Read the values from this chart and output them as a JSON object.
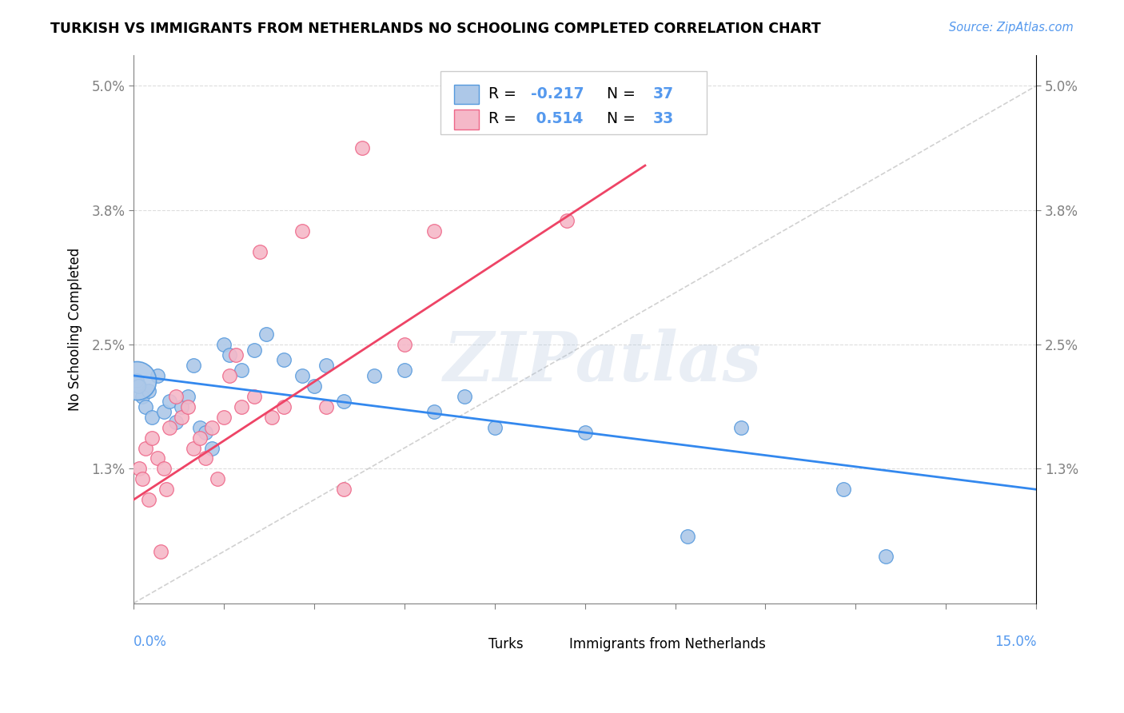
{
  "title": "TURKISH VS IMMIGRANTS FROM NETHERLANDS NO SCHOOLING COMPLETED CORRELATION CHART",
  "source": "Source: ZipAtlas.com",
  "ylabel": "No Schooling Completed",
  "blue_color": "#adc8e8",
  "pink_color": "#f5b8c8",
  "blue_edge": "#5599dd",
  "pink_edge": "#ee6688",
  "blue_line_color": "#3388ee",
  "pink_line_color": "#ee4466",
  "diag_color": "#cccccc",
  "grid_color": "#dddddd",
  "r_blue": "-0.217",
  "n_blue": "37",
  "r_pink": "0.514",
  "n_pink": "33",
  "xmin": 0.0,
  "xmax": 15.0,
  "ymin": 0.0,
  "ymax": 5.3,
  "ytick_vals": [
    1.3,
    2.5,
    3.8,
    5.0
  ],
  "xtick_vals": [
    0.0,
    1.5,
    3.0,
    4.5,
    6.0,
    7.5,
    9.0,
    10.5,
    12.0,
    13.5,
    15.0
  ],
  "watermark": "ZIPatlas",
  "axis_label_color": "#5599ee",
  "title_size": 12.5,
  "axis_tick_size": 12,
  "turks_x": [
    0.05,
    0.1,
    0.15,
    0.2,
    0.25,
    0.3,
    0.4,
    0.5,
    0.6,
    0.7,
    0.8,
    0.9,
    1.0,
    1.1,
    1.2,
    1.3,
    1.5,
    1.6,
    1.8,
    2.0,
    2.2,
    2.5,
    2.8,
    3.0,
    3.2,
    3.5,
    4.0,
    4.5,
    5.0,
    5.5,
    6.0,
    7.5,
    9.2,
    10.1,
    11.8,
    12.5,
    0.08
  ],
  "turks_y": [
    2.15,
    2.1,
    2.0,
    1.9,
    2.05,
    1.8,
    2.2,
    1.85,
    1.95,
    1.75,
    1.9,
    2.0,
    2.3,
    1.7,
    1.65,
    1.5,
    2.5,
    2.4,
    2.25,
    2.45,
    2.6,
    2.35,
    2.2,
    2.1,
    2.3,
    1.95,
    2.2,
    2.25,
    1.85,
    2.0,
    1.7,
    1.65,
    0.65,
    1.7,
    1.1,
    0.45,
    2.1
  ],
  "neth_x": [
    0.1,
    0.15,
    0.2,
    0.25,
    0.3,
    0.4,
    0.45,
    0.5,
    0.55,
    0.6,
    0.7,
    0.8,
    0.9,
    1.0,
    1.1,
    1.2,
    1.3,
    1.4,
    1.5,
    1.6,
    1.7,
    1.8,
    2.0,
    2.1,
    2.3,
    2.5,
    2.8,
    3.2,
    3.5,
    3.8,
    4.5,
    5.0,
    7.2
  ],
  "neth_y": [
    1.3,
    1.2,
    1.5,
    1.0,
    1.6,
    1.4,
    0.5,
    1.3,
    1.1,
    1.7,
    2.0,
    1.8,
    1.9,
    1.5,
    1.6,
    1.4,
    1.7,
    1.2,
    1.8,
    2.2,
    2.4,
    1.9,
    2.0,
    3.4,
    1.8,
    1.9,
    3.6,
    1.9,
    1.1,
    4.4,
    2.5,
    3.6,
    3.7
  ],
  "big_turk_x": 0.05,
  "big_turk_y": 2.15,
  "blue_trend_x0": 0.0,
  "blue_trend_y0": 2.2,
  "blue_trend_x1": 15.0,
  "blue_trend_y1": 1.1,
  "pink_trend_x0": 0.0,
  "pink_trend_y0": 1.0,
  "pink_trend_x1": 8.5,
  "pink_trend_y1": 4.23,
  "diag_x0": 0.0,
  "diag_y0": 0.0,
  "diag_x1": 15.0,
  "diag_y1": 5.0
}
